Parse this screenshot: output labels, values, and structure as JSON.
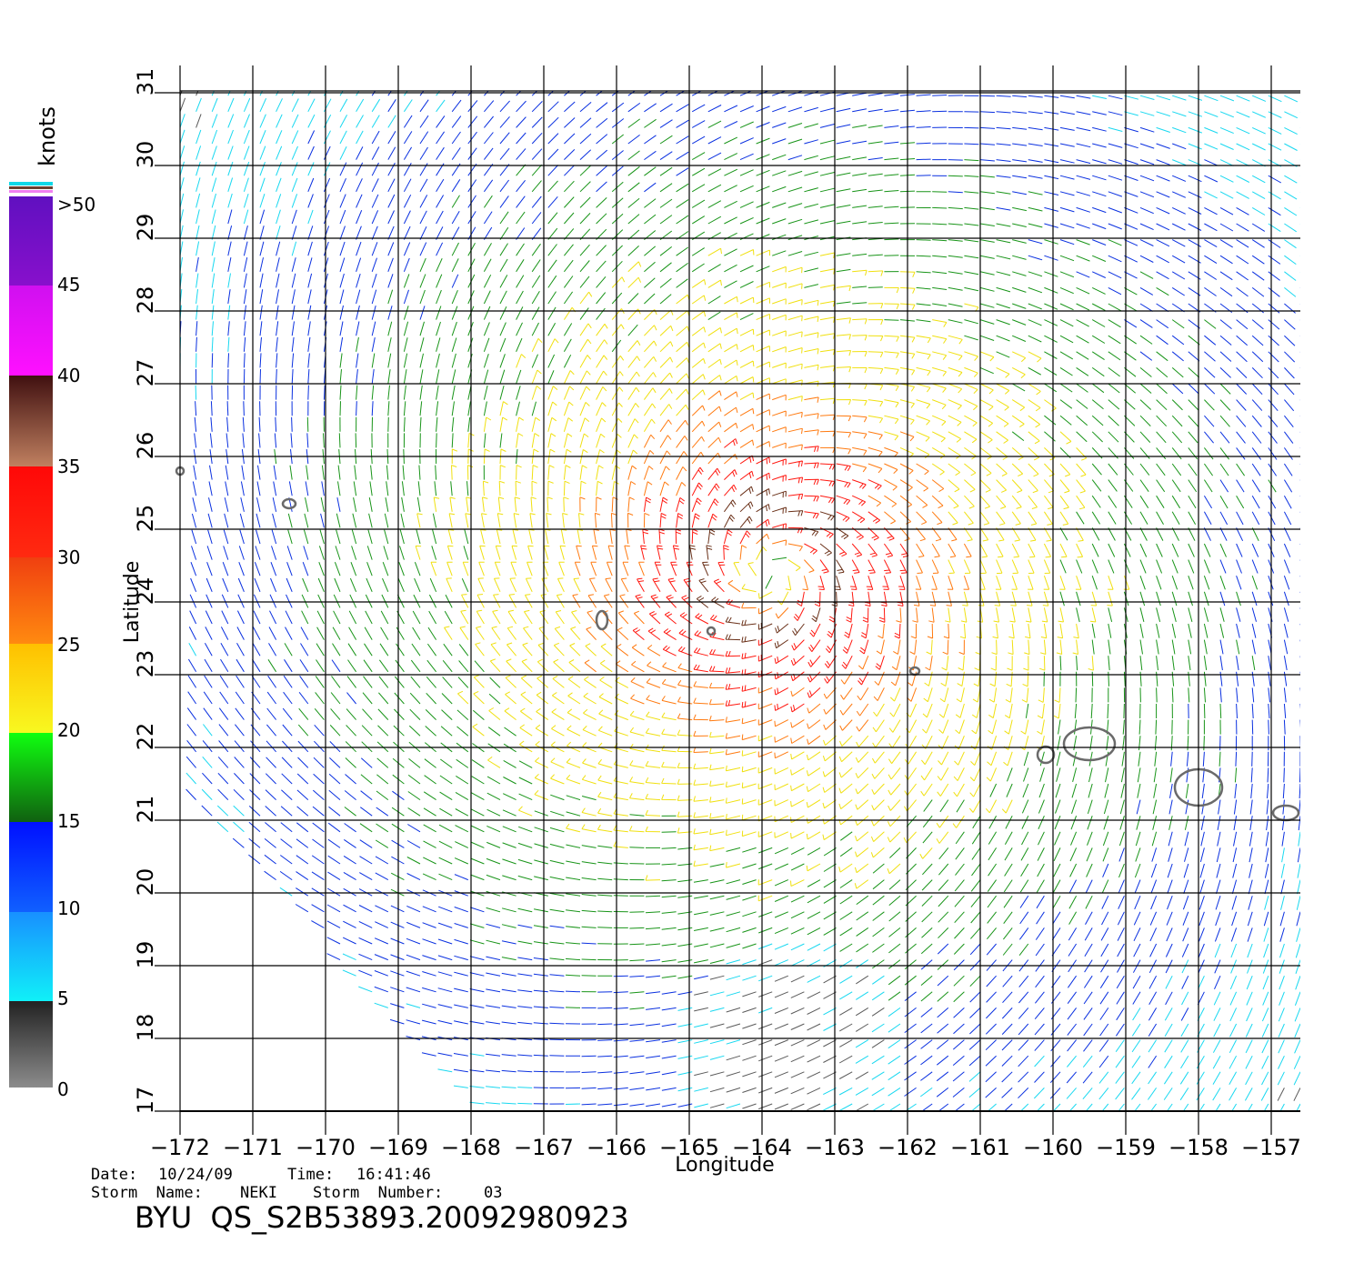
{
  "map": {
    "x_axis_label": "Longitude",
    "y_axis_label": "Latitude",
    "lon_ticks": [
      "-172",
      "-171",
      "-170",
      "-169",
      "-168",
      "-167",
      "-166",
      "-165",
      "-164",
      "-163",
      "-162",
      "-161",
      "-160",
      "-159",
      "-158",
      "-157"
    ],
    "lat_ticks": [
      "17",
      "18",
      "19",
      "20",
      "21",
      "22",
      "23",
      "24",
      "25",
      "26",
      "27",
      "28",
      "29",
      "30",
      "31"
    ],
    "lon_range": [
      -172,
      -156.6
    ],
    "lat_range": [
      17,
      31
    ],
    "storm_center": {
      "lon": -163.9,
      "lat": 24.4
    },
    "islands": [
      {
        "name": "Kauai",
        "lon": -159.5,
        "lat": 22.05
      },
      {
        "name": "Oahu",
        "lon": -158.0,
        "lat": 21.45
      },
      {
        "name": "Niihau",
        "lon": -160.1,
        "lat": 21.9
      },
      {
        "name": "Molokai",
        "lon": -156.8,
        "lat": 21.1
      },
      {
        "name": "Necker",
        "lon": -164.7,
        "lat": 23.6
      },
      {
        "name": "French Frigate Shoals",
        "lon": -166.2,
        "lat": 23.75
      },
      {
        "name": "Nihoa",
        "lon": -161.9,
        "lat": 23.05
      },
      {
        "name": "Laysan",
        "lon": -170.5,
        "lat": 25.35
      },
      {
        "name": "Lisianski",
        "lon": -172.0,
        "lat": 25.8
      }
    ]
  },
  "legend": {
    "unit_label": "knots",
    "max_label": ">50",
    "tick_labels": [
      "45",
      "40",
      "35",
      "30",
      "25",
      "20",
      "15",
      "10",
      "5",
      "0"
    ],
    "colors": {
      "0-5": "#5a5a5a",
      "5-10": "#18d8f0",
      "10-15": "#0a30e0",
      "15-20": "#189418",
      "20-25": "#f0e010",
      "25-30": "#ff7a10",
      "30-35": "#ff1810",
      "35-40": "#6a3018",
      "40-45": "#f010f0",
      "45-50": "#9010c8"
    }
  },
  "info": {
    "date_label": "Date:",
    "date_value": "10/24/09",
    "time_label": "Time:",
    "time_value": "16:41:46",
    "storm_name_label": "Storm  Name:",
    "storm_name_value": "NEKI",
    "storm_number_label": "Storm  Number:",
    "storm_number_value": "03",
    "product_title": "BYU  QS_S2B53893.20092980923"
  }
}
